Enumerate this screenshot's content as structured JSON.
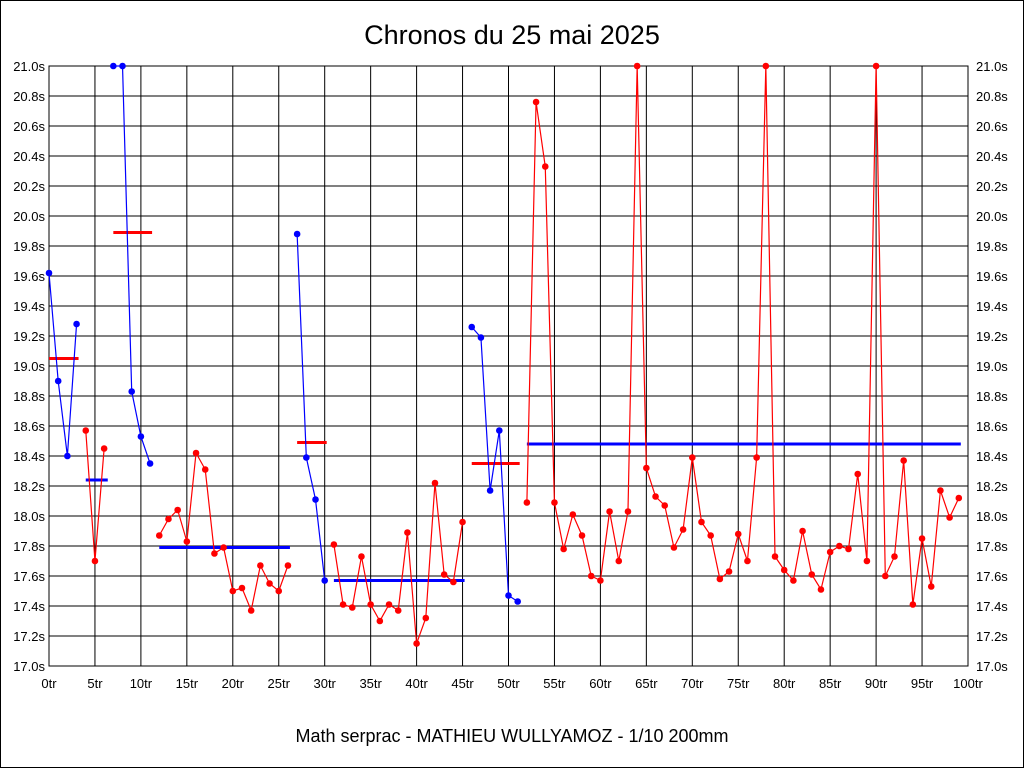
{
  "chart_data": {
    "type": "line",
    "title": "Chronos du 25 mai 2025",
    "footer": "Math serprac - MATHIEU WULLYAMOZ - 1/10 200mm",
    "xlim": [
      0,
      100
    ],
    "ylim": [
      17.0,
      21.0
    ],
    "x_ticks": [
      "0tr",
      "5tr",
      "10tr",
      "15tr",
      "20tr",
      "25tr",
      "30tr",
      "35tr",
      "40tr",
      "45tr",
      "50tr",
      "55tr",
      "60tr",
      "65tr",
      "70tr",
      "75tr",
      "80tr",
      "85tr",
      "90tr",
      "95tr",
      "100tr"
    ],
    "y_ticks": [
      "17.0s",
      "17.2s",
      "17.4s",
      "17.6s",
      "17.8s",
      "18.0s",
      "18.2s",
      "18.4s",
      "18.6s",
      "18.8s",
      "19.0s",
      "19.2s",
      "19.4s",
      "19.6s",
      "19.8s",
      "20.0s",
      "20.2s",
      "20.4s",
      "20.6s",
      "20.8s",
      "21.0s"
    ],
    "grid": true,
    "colors": {
      "blue": "#0000ff",
      "red": "#ff0000"
    },
    "segments": [
      {
        "color": "blue",
        "start": 0,
        "values": [
          19.62,
          18.9,
          18.4,
          19.28
        ],
        "mean": 19.05,
        "mean_color": "red"
      },
      {
        "color": "red",
        "start": 4,
        "values": [
          18.57,
          17.7,
          18.45
        ],
        "mean": 18.24,
        "mean_color": "blue"
      },
      {
        "color": "blue",
        "start": 7,
        "values": [
          21.0,
          21.0,
          18.83,
          18.53,
          18.35
        ],
        "mean": 19.89,
        "mean_color": "red"
      },
      {
        "color": "red",
        "start": 12,
        "values": [
          17.87,
          17.98,
          18.04,
          17.83,
          18.42,
          18.31,
          17.75,
          17.79,
          17.5,
          17.52,
          17.37,
          17.67,
          17.55,
          17.5,
          17.67
        ],
        "mean": 17.79,
        "mean_color": "blue"
      },
      {
        "color": "blue",
        "start": 27,
        "values": [
          19.88,
          18.39,
          18.11,
          17.57
        ],
        "mean": 18.49,
        "mean_color": "red"
      },
      {
        "color": "red",
        "start": 31,
        "values": [
          17.81,
          17.41,
          17.39,
          17.73,
          17.41,
          17.3,
          17.41,
          17.37,
          17.89,
          17.15,
          17.32,
          18.22,
          17.61,
          17.56,
          17.96
        ],
        "mean": 17.57,
        "mean_color": "blue"
      },
      {
        "color": "blue",
        "start": 46,
        "values": [
          19.26,
          19.19,
          18.17,
          18.57,
          17.47,
          17.43
        ],
        "mean": 18.35,
        "mean_color": "red"
      },
      {
        "color": "red",
        "start": 52,
        "values": [
          18.09,
          20.76,
          20.33,
          18.09,
          17.78,
          18.01,
          17.87,
          17.6,
          17.57,
          18.03,
          17.7,
          18.03,
          21.0,
          18.32,
          18.13,
          18.07,
          17.79,
          17.91,
          18.39,
          17.96,
          17.87,
          17.58,
          17.63,
          17.88,
          17.7,
          18.39,
          21.0,
          17.73,
          17.64,
          17.57,
          17.9,
          17.61,
          17.51,
          17.76,
          17.8,
          17.78,
          18.28,
          17.7,
          21.0,
          17.6,
          17.73,
          18.37,
          17.41,
          17.85,
          17.53,
          18.17,
          17.99,
          18.12
        ],
        "mean": 18.48,
        "mean_color": "blue"
      }
    ]
  }
}
